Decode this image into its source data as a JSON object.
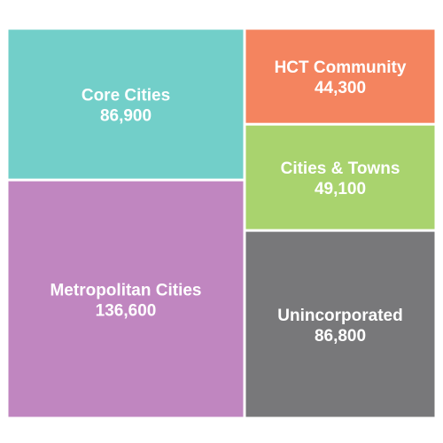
{
  "chart_data": {
    "type": "treemap",
    "title": "",
    "items": [
      {
        "name": "Core Cities",
        "value": 86900,
        "label": "86,900",
        "color": "#72CFC9"
      },
      {
        "name": "Metropolitan Cities",
        "value": 136600,
        "label": "136,600",
        "color": "#C086C0"
      },
      {
        "name": "HCT Community",
        "value": 44300,
        "label": "44,300",
        "color": "#F4845F"
      },
      {
        "name": "Cities & Towns",
        "value": 49100,
        "label": "49,100",
        "color": "#A9D36E"
      },
      {
        "name": "Unincorporated",
        "value": 86800,
        "label": "86,800",
        "color": "#78787A"
      }
    ]
  }
}
